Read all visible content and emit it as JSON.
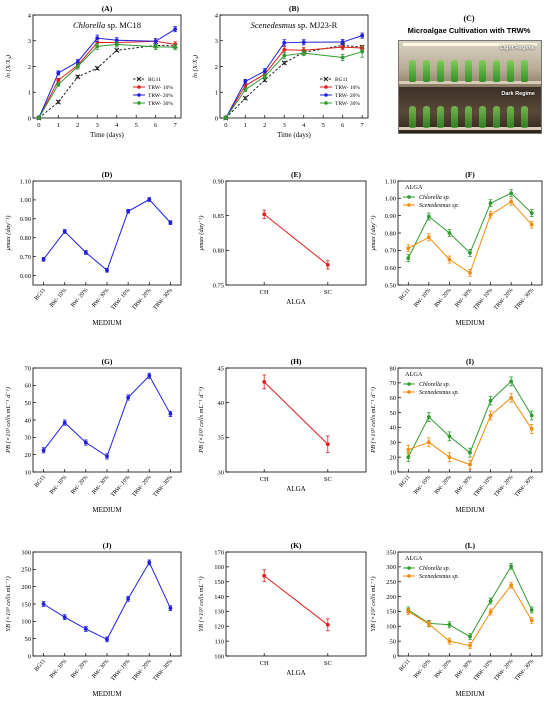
{
  "medium_categories": [
    "BG11",
    "RW- 10%",
    "RW- 20%",
    "RW- 30%",
    "TRW- 10%",
    "TRW- 20%",
    "TRW- 30%"
  ],
  "alga_categories": [
    "CH",
    "SC"
  ],
  "photo": {
    "label": "(C)",
    "title": "Microalgae Cultivation with TRW%",
    "light_text": "Light Regime",
    "dark_text": "Dark Regime"
  },
  "colors": {
    "blue": "#1f1fe0",
    "red": "#e01f1f",
    "green": "#2e9b2e",
    "orange": "#f08c0a",
    "black": "#000000",
    "bg11_black": "#222222"
  },
  "chart_data": [
    {
      "id": "A",
      "label": "(A)",
      "type": "line",
      "title_italic": "Chlorella",
      "title_rest": " sp. MC18",
      "xlabel": "Time (days)",
      "ylabel": "ln (X/X₀)",
      "x": [
        0,
        1,
        2,
        3,
        4,
        6,
        7
      ],
      "xlim": [
        -0.3,
        7.3
      ],
      "ylim": [
        0,
        4
      ],
      "xticks": [
        0,
        1,
        2,
        3,
        4,
        5,
        6,
        7
      ],
      "yticks": [
        0,
        1,
        2,
        3,
        4
      ],
      "legend": "bottom-right",
      "series": [
        {
          "name": "BG11",
          "color": "#222222",
          "marker": "x",
          "dashed": true,
          "values": [
            0,
            0.62,
            1.6,
            1.93,
            2.63,
            2.82,
            2.8
          ],
          "err": [
            0.04,
            0.05,
            0.05,
            0.05,
            0.05,
            0.06,
            0.06
          ]
        },
        {
          "name": "TRW- 10%",
          "color": "#e01f1f",
          "marker": "o",
          "values": [
            0,
            1.47,
            2.05,
            2.93,
            2.93,
            2.98,
            2.86
          ],
          "err": [
            0.04,
            0.07,
            0.1,
            0.12,
            0.1,
            0.1,
            0.1
          ]
        },
        {
          "name": "TRW- 20%",
          "color": "#1f1fe0",
          "marker": "o",
          "values": [
            0,
            1.75,
            2.18,
            3.1,
            3.02,
            2.98,
            3.45
          ],
          "err": [
            0.04,
            0.08,
            0.1,
            0.12,
            0.1,
            0.1,
            0.1
          ]
        },
        {
          "name": "TRW- 30%",
          "color": "#2e9b2e",
          "marker": "o",
          "values": [
            0,
            1.3,
            2.0,
            2.78,
            2.86,
            2.76,
            2.75
          ],
          "err": [
            0.04,
            0.07,
            0.1,
            0.12,
            0.1,
            0.1,
            0.1
          ]
        }
      ]
    },
    {
      "id": "B",
      "label": "(B)",
      "type": "line",
      "title_italic": "Scenedesmus",
      "title_rest": " sp. MJ23-R",
      "xlabel": "Time (days)",
      "ylabel": "ln (X/X₀)",
      "x": [
        0,
        1,
        2,
        3,
        4,
        6,
        7
      ],
      "xlim": [
        -0.3,
        7.3
      ],
      "ylim": [
        0,
        4
      ],
      "xticks": [
        0,
        1,
        2,
        3,
        4,
        5,
        6,
        7
      ],
      "yticks": [
        0,
        1,
        2,
        3,
        4
      ],
      "legend": "bottom-right",
      "series": [
        {
          "name": "BG11",
          "color": "#222222",
          "marker": "x",
          "dashed": true,
          "values": [
            0,
            0.77,
            1.47,
            2.14,
            2.55,
            2.82,
            2.75
          ],
          "err": [
            0.04,
            0.05,
            0.05,
            0.05,
            0.05,
            0.06,
            0.06
          ]
        },
        {
          "name": "TRW- 10%",
          "color": "#e01f1f",
          "marker": "o",
          "values": [
            0,
            1.26,
            1.7,
            2.65,
            2.63,
            2.75,
            2.72
          ],
          "err": [
            0.04,
            0.07,
            0.1,
            0.12,
            0.1,
            0.1,
            0.1
          ]
        },
        {
          "name": "TRW- 20%",
          "color": "#1f1fe0",
          "marker": "o",
          "values": [
            0,
            1.42,
            1.82,
            2.92,
            2.94,
            2.95,
            3.2
          ],
          "err": [
            0.04,
            0.08,
            0.1,
            0.12,
            0.1,
            0.1,
            0.1
          ]
        },
        {
          "name": "TRW- 30%",
          "color": "#2e9b2e",
          "marker": "o",
          "values": [
            0,
            1.1,
            1.61,
            2.42,
            2.52,
            2.35,
            2.58
          ],
          "err": [
            0.04,
            0.07,
            0.1,
            0.12,
            0.1,
            0.12,
            0.22
          ]
        }
      ]
    },
    {
      "id": "D",
      "label": "(D)",
      "type": "line",
      "xkind": "medium",
      "xlabel": "MEDIUM",
      "ylabel": "μmax (day⁻¹)",
      "ylim": [
        0.55,
        1.1
      ],
      "yticks": [
        0.6,
        0.7,
        0.8,
        0.9,
        1.0,
        1.1
      ],
      "series": [
        {
          "name": "",
          "color": "#1f1fe0",
          "marker": "o",
          "values": [
            0.686,
            0.833,
            0.722,
            0.628,
            0.94,
            1.002,
            0.88
          ],
          "err": [
            0.01,
            0.01,
            0.01,
            0.01,
            0.01,
            0.01,
            0.01
          ]
        }
      ]
    },
    {
      "id": "E",
      "label": "(E)",
      "type": "line",
      "xkind": "alga",
      "xlabel": "ALGA",
      "ylabel": "μmax (day⁻¹)",
      "ylim": [
        0.75,
        0.9
      ],
      "yticks": [
        0.75,
        0.8,
        0.85,
        0.9
      ],
      "series": [
        {
          "name": "",
          "color": "#e01f1f",
          "marker": "o",
          "values": [
            0.852,
            0.779
          ],
          "err": [
            0.006,
            0.006
          ]
        }
      ]
    },
    {
      "id": "F",
      "label": "(F)",
      "type": "line",
      "xkind": "medium",
      "xlabel": "MEDIUM",
      "ylabel": "μmax (day⁻¹)",
      "ylim": [
        0.5,
        1.1
      ],
      "yticks": [
        0.5,
        0.6,
        0.7,
        0.8,
        0.9,
        1.0,
        1.1
      ],
      "legend_title": "ALGA",
      "legend": "top-left",
      "series": [
        {
          "name": "Chlorella sp.",
          "color": "#2e9b2e",
          "marker": "o",
          "values": [
            0.655,
            0.895,
            0.8,
            0.685,
            0.972,
            1.03,
            0.915
          ],
          "err": [
            0.02,
            0.02,
            0.02,
            0.02,
            0.02,
            0.02,
            0.02
          ]
        },
        {
          "name": "Scenedesmus sp.",
          "color": "#f08c0a",
          "marker": "o",
          "values": [
            0.712,
            0.775,
            0.647,
            0.57,
            0.905,
            0.98,
            0.848
          ],
          "err": [
            0.02,
            0.02,
            0.02,
            0.02,
            0.02,
            0.02,
            0.02
          ]
        }
      ]
    },
    {
      "id": "G",
      "label": "(G)",
      "type": "line",
      "xkind": "medium",
      "xlabel": "MEDIUM",
      "ylabel": "PB (×10³ cells mL⁻¹ d⁻¹)",
      "ylim": [
        10,
        70
      ],
      "yticks": [
        10,
        20,
        30,
        40,
        50,
        60,
        70
      ],
      "series": [
        {
          "name": "",
          "color": "#1f1fe0",
          "marker": "o",
          "values": [
            22.5,
            38.5,
            27,
            19,
            53,
            65.5,
            43.5
          ],
          "err": [
            1.5,
            1.5,
            1.5,
            1.5,
            1.5,
            1.5,
            1.5
          ]
        }
      ]
    },
    {
      "id": "H",
      "label": "(H)",
      "type": "line",
      "xkind": "alga",
      "xlabel": "ALGA",
      "ylabel": "PB (×10³ cells mL⁻¹ d⁻¹)",
      "ylim": [
        30,
        45
      ],
      "yticks": [
        30,
        35,
        40,
        45
      ],
      "series": [
        {
          "name": "",
          "color": "#e01f1f",
          "marker": "o",
          "values": [
            43,
            34
          ],
          "err": [
            1,
            1.2
          ]
        }
      ]
    },
    {
      "id": "I",
      "label": "(I)",
      "type": "line",
      "xkind": "medium",
      "xlabel": "MEDIUM",
      "ylabel": "PB (×10³ cells mL⁻¹ d⁻¹)",
      "ylim": [
        10,
        80
      ],
      "yticks": [
        10,
        20,
        30,
        40,
        50,
        60,
        70,
        80
      ],
      "legend_title": "ALGA",
      "legend": "top-left",
      "series": [
        {
          "name": "Chlorella sp.",
          "color": "#2e9b2e",
          "marker": "o",
          "values": [
            20,
            47,
            34,
            23,
            58,
            71,
            48
          ],
          "err": [
            3,
            3,
            3,
            3,
            3,
            3,
            3
          ]
        },
        {
          "name": "Scenedesmus sp.",
          "color": "#f08c0a",
          "marker": "o",
          "values": [
            25,
            30,
            20,
            15,
            48,
            60,
            39
          ],
          "err": [
            3,
            3,
            3,
            3,
            3,
            3,
            3
          ]
        }
      ]
    },
    {
      "id": "J",
      "label": "(J)",
      "type": "line",
      "xkind": "medium",
      "xlabel": "MEDIUM",
      "ylabel": "YB (×10³ cells mL⁻¹)",
      "ylim": [
        0,
        300
      ],
      "yticks": [
        0,
        50,
        100,
        150,
        200,
        250,
        300
      ],
      "series": [
        {
          "name": "",
          "color": "#1f1fe0",
          "marker": "o",
          "values": [
            150,
            112,
            78,
            48,
            165,
            270,
            138
          ],
          "err": [
            7,
            7,
            7,
            7,
            7,
            7,
            7
          ]
        }
      ]
    },
    {
      "id": "K",
      "label": "(K)",
      "type": "line",
      "xkind": "alga",
      "xlabel": "ALGA",
      "ylabel": "YB (×10³ cells mL⁻¹)",
      "ylim": [
        100,
        170
      ],
      "yticks": [
        100,
        110,
        120,
        130,
        140,
        150,
        160,
        170
      ],
      "series": [
        {
          "name": "",
          "color": "#e01f1f",
          "marker": "o",
          "values": [
            154,
            121
          ],
          "err": [
            4,
            4
          ]
        }
      ]
    },
    {
      "id": "L",
      "label": "(L)",
      "type": "line",
      "xkind": "medium",
      "xlabel": "MEDIUM",
      "ylabel": "YB (×10³ cells mL⁻¹)",
      "ylim": [
        0,
        350
      ],
      "yticks": [
        0,
        50,
        100,
        150,
        200,
        250,
        300,
        350
      ],
      "legend_title": "ALGA",
      "legend": "top-left",
      "series": [
        {
          "name": "Chlorella sp.",
          "color": "#2e9b2e",
          "marker": "o",
          "values": [
            155,
            110,
            105,
            65,
            185,
            302,
            155
          ],
          "err": [
            10,
            10,
            10,
            10,
            10,
            10,
            10
          ]
        },
        {
          "name": "Scenedesmus sp.",
          "color": "#f08c0a",
          "marker": "o",
          "values": [
            150,
            108,
            50,
            35,
            148,
            238,
            120
          ],
          "err": [
            10,
            10,
            10,
            10,
            10,
            10,
            10
          ]
        }
      ]
    }
  ]
}
